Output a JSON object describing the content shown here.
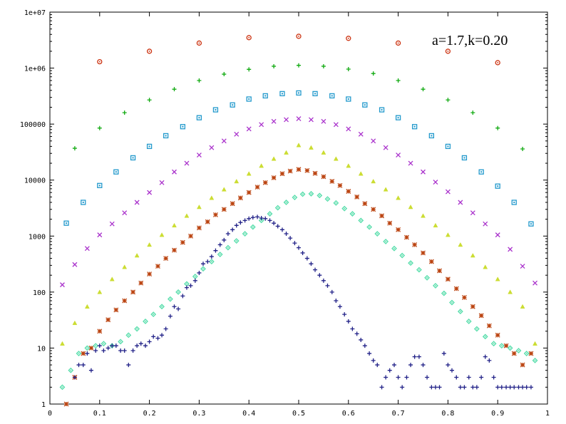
{
  "chart_data": {
    "type": "scatter",
    "title": "",
    "xlabel": "",
    "ylabel": "",
    "xlim": [
      0,
      1
    ],
    "ylim": [
      1,
      10000000
    ],
    "y_scale": "log",
    "grid": false,
    "legend": "none",
    "annotation": "a=1.7,k=0.20",
    "x_ticks": [
      {
        "value": 0,
        "label": "0"
      },
      {
        "value": 0.1,
        "label": "0.1"
      },
      {
        "value": 0.2,
        "label": "0.2"
      },
      {
        "value": 0.3,
        "label": "0.3"
      },
      {
        "value": 0.4,
        "label": "0.4"
      },
      {
        "value": 0.5,
        "label": "0.5"
      },
      {
        "value": 0.6,
        "label": "0.6"
      },
      {
        "value": 0.7,
        "label": "0.7"
      },
      {
        "value": 0.8,
        "label": "0.8"
      },
      {
        "value": 0.9,
        "label": "0.9"
      },
      {
        "value": 1,
        "label": "1"
      }
    ],
    "y_ticks": [
      {
        "value": 1,
        "label": "1"
      },
      {
        "value": 10,
        "label": "10"
      },
      {
        "value": 100,
        "label": "100"
      },
      {
        "value": 1000,
        "label": "1000"
      },
      {
        "value": 10000,
        "label": "10000"
      },
      {
        "value": 100000,
        "label": "100000"
      },
      {
        "value": 1000000,
        "label": "1e+06"
      },
      {
        "value": 10000000,
        "label": "1e+07"
      }
    ],
    "series": [
      {
        "marker": "circle-dot",
        "color": "#cc3311",
        "x": [
          0.1,
          0.2,
          0.3,
          0.4,
          0.5,
          0.6,
          0.7,
          0.8,
          0.9
        ],
        "y": [
          1300000,
          2000000,
          2800000,
          3500000,
          3700000,
          3400000,
          2800000,
          2000000,
          1250000
        ]
      },
      {
        "marker": "plus",
        "color": "#11aa11",
        "x": [
          0.05,
          0.1,
          0.15,
          0.2,
          0.25,
          0.3,
          0.35,
          0.4,
          0.45,
          0.5,
          0.55,
          0.6,
          0.65,
          0.7,
          0.75,
          0.8,
          0.85,
          0.9,
          0.95
        ],
        "y": [
          37000,
          85000,
          160000,
          270000,
          420000,
          600000,
          780000,
          950000,
          1080000,
          1120000,
          1080000,
          960000,
          800000,
          600000,
          420000,
          270000,
          160000,
          85000,
          36000
        ]
      },
      {
        "marker": "square-dot",
        "color": "#2299cc",
        "x": [
          0.033,
          0.067,
          0.1,
          0.133,
          0.167,
          0.2,
          0.233,
          0.267,
          0.3,
          0.333,
          0.367,
          0.4,
          0.433,
          0.467,
          0.5,
          0.533,
          0.567,
          0.6,
          0.633,
          0.667,
          0.7,
          0.733,
          0.767,
          0.8,
          0.833,
          0.867,
          0.9,
          0.933,
          0.967
        ],
        "y": [
          1700,
          4000,
          8000,
          14000,
          25000,
          40000,
          62000,
          90000,
          130000,
          180000,
          220000,
          280000,
          320000,
          350000,
          360000,
          350000,
          320000,
          280000,
          220000,
          180000,
          130000,
          90000,
          62000,
          40000,
          25000,
          14000,
          7800,
          4000,
          1650
        ]
      },
      {
        "marker": "cross",
        "color": "#aa33cc",
        "x": [
          0.025,
          0.05,
          0.075,
          0.1,
          0.125,
          0.15,
          0.175,
          0.2,
          0.225,
          0.25,
          0.275,
          0.3,
          0.325,
          0.35,
          0.375,
          0.4,
          0.425,
          0.45,
          0.475,
          0.5,
          0.525,
          0.55,
          0.575,
          0.6,
          0.625,
          0.65,
          0.675,
          0.7,
          0.725,
          0.75,
          0.775,
          0.8,
          0.825,
          0.85,
          0.875,
          0.9,
          0.925,
          0.95,
          0.975
        ],
        "y": [
          135,
          310,
          600,
          1050,
          1650,
          2600,
          4000,
          6000,
          9000,
          14000,
          20000,
          28000,
          38000,
          50000,
          66000,
          82000,
          98000,
          112000,
          120000,
          125000,
          120000,
          112000,
          98000,
          82000,
          66000,
          50000,
          38000,
          28000,
          20000,
          14000,
          9200,
          6200,
          4000,
          2600,
          1650,
          1050,
          580,
          290,
          145
        ]
      },
      {
        "marker": "triangle",
        "color": "#ccdd33",
        "x": [
          0.025,
          0.05,
          0.075,
          0.1,
          0.125,
          0.15,
          0.175,
          0.2,
          0.225,
          0.25,
          0.275,
          0.3,
          0.325,
          0.35,
          0.375,
          0.4,
          0.425,
          0.45,
          0.475,
          0.5,
          0.525,
          0.55,
          0.575,
          0.6,
          0.625,
          0.65,
          0.675,
          0.7,
          0.725,
          0.75,
          0.775,
          0.8,
          0.825,
          0.85,
          0.875,
          0.9,
          0.925,
          0.95,
          0.975
        ],
        "y": [
          12,
          28,
          55,
          100,
          170,
          280,
          450,
          700,
          1050,
          1550,
          2300,
          3300,
          4800,
          6800,
          9500,
          13000,
          18000,
          24000,
          31000,
          42000,
          38000,
          31000,
          24000,
          18000,
          13000,
          9500,
          6800,
          4800,
          3300,
          2300,
          1550,
          1050,
          700,
          450,
          280,
          170,
          100,
          55,
          12
        ]
      },
      {
        "marker": "asterisk",
        "color": "#bb4411",
        "x": [
          0.033,
          0.05,
          0.067,
          0.083,
          0.1,
          0.117,
          0.133,
          0.15,
          0.167,
          0.183,
          0.2,
          0.217,
          0.233,
          0.25,
          0.267,
          0.283,
          0.3,
          0.317,
          0.333,
          0.35,
          0.367,
          0.383,
          0.4,
          0.417,
          0.433,
          0.45,
          0.467,
          0.483,
          0.5,
          0.517,
          0.533,
          0.55,
          0.567,
          0.583,
          0.6,
          0.617,
          0.633,
          0.65,
          0.667,
          0.683,
          0.7,
          0.717,
          0.733,
          0.75,
          0.767,
          0.783,
          0.8,
          0.817,
          0.833,
          0.85,
          0.867,
          0.883,
          0.9,
          0.917,
          0.933,
          0.95,
          0.967
        ],
        "y": [
          1,
          3,
          8,
          10,
          20,
          32,
          48,
          70,
          100,
          145,
          210,
          290,
          400,
          560,
          770,
          1000,
          1400,
          1800,
          2400,
          3000,
          3800,
          4800,
          6000,
          7500,
          9000,
          11000,
          13000,
          14500,
          15500,
          14800,
          13200,
          11500,
          9500,
          8000,
          6300,
          5000,
          3800,
          3000,
          2300,
          1700,
          1300,
          950,
          700,
          500,
          350,
          240,
          170,
          115,
          80,
          55,
          38,
          25,
          17,
          11,
          8,
          5,
          8
        ]
      },
      {
        "marker": "diamond-dot",
        "color": "#55ddaa",
        "x": [
          0.025,
          0.042,
          0.058,
          0.075,
          0.092,
          0.108,
          0.125,
          0.142,
          0.158,
          0.175,
          0.192,
          0.208,
          0.225,
          0.242,
          0.258,
          0.275,
          0.292,
          0.308,
          0.325,
          0.342,
          0.358,
          0.375,
          0.392,
          0.408,
          0.425,
          0.442,
          0.458,
          0.475,
          0.492,
          0.508,
          0.525,
          0.542,
          0.558,
          0.575,
          0.592,
          0.608,
          0.625,
          0.642,
          0.658,
          0.675,
          0.692,
          0.708,
          0.725,
          0.742,
          0.758,
          0.775,
          0.792,
          0.808,
          0.825,
          0.842,
          0.858,
          0.875,
          0.892,
          0.908,
          0.925,
          0.942,
          0.958,
          0.975
        ],
        "y": [
          2,
          4,
          8,
          10,
          11,
          12,
          11,
          13,
          17,
          22,
          30,
          40,
          55,
          75,
          100,
          140,
          190,
          260,
          350,
          470,
          620,
          820,
          1100,
          1450,
          1900,
          2500,
          3200,
          4000,
          4900,
          5600,
          5700,
          5300,
          4600,
          3900,
          3100,
          2500,
          1900,
          1450,
          1100,
          800,
          600,
          450,
          330,
          250,
          180,
          130,
          95,
          65,
          45,
          30,
          22,
          16,
          12,
          11,
          10,
          9,
          8,
          6
        ]
      },
      {
        "marker": "plus",
        "color": "#222288",
        "x": [
          0.05,
          0.058,
          0.067,
          0.075,
          0.083,
          0.092,
          0.1,
          0.108,
          0.117,
          0.125,
          0.133,
          0.142,
          0.15,
          0.158,
          0.167,
          0.175,
          0.183,
          0.192,
          0.2,
          0.208,
          0.217,
          0.225,
          0.233,
          0.242,
          0.25,
          0.258,
          0.267,
          0.275,
          0.283,
          0.292,
          0.3,
          0.308,
          0.317,
          0.325,
          0.333,
          0.342,
          0.35,
          0.358,
          0.367,
          0.375,
          0.383,
          0.392,
          0.4,
          0.408,
          0.417,
          0.425,
          0.433,
          0.442,
          0.45,
          0.458,
          0.467,
          0.475,
          0.483,
          0.492,
          0.5,
          0.508,
          0.517,
          0.525,
          0.533,
          0.542,
          0.55,
          0.558,
          0.567,
          0.575,
          0.583,
          0.592,
          0.6,
          0.608,
          0.617,
          0.625,
          0.633,
          0.642,
          0.65,
          0.658,
          0.667,
          0.675,
          0.683,
          0.692,
          0.7,
          0.708,
          0.717,
          0.725,
          0.733,
          0.742,
          0.75,
          0.758,
          0.767,
          0.775,
          0.783,
          0.792,
          0.8,
          0.808,
          0.817,
          0.825,
          0.833,
          0.842,
          0.85,
          0.858,
          0.867,
          0.875,
          0.883,
          0.892,
          0.9,
          0.908,
          0.917,
          0.925,
          0.933,
          0.942,
          0.95,
          0.958,
          0.967
        ],
        "y": [
          3,
          5,
          5,
          8,
          4,
          9,
          11,
          9,
          10,
          11,
          11,
          9,
          9,
          5,
          9,
          11,
          12,
          11,
          13,
          16,
          15,
          17,
          22,
          37,
          55,
          50,
          85,
          120,
          130,
          160,
          220,
          320,
          350,
          430,
          550,
          700,
          850,
          1100,
          1300,
          1550,
          1750,
          1900,
          2050,
          2150,
          2200,
          2100,
          2050,
          1900,
          1700,
          1500,
          1300,
          1100,
          920,
          750,
          620,
          500,
          400,
          320,
          250,
          200,
          160,
          130,
          100,
          70,
          55,
          40,
          30,
          22,
          18,
          14,
          11,
          8,
          6,
          5,
          2,
          3,
          4,
          5,
          3,
          2,
          3,
          5,
          7,
          7,
          5,
          3,
          2,
          2,
          2,
          8,
          5,
          4,
          3,
          2,
          2,
          3,
          2,
          2,
          3,
          7,
          6,
          3,
          2,
          2,
          2,
          2,
          2,
          2,
          2,
          2,
          2
        ]
      }
    ]
  }
}
